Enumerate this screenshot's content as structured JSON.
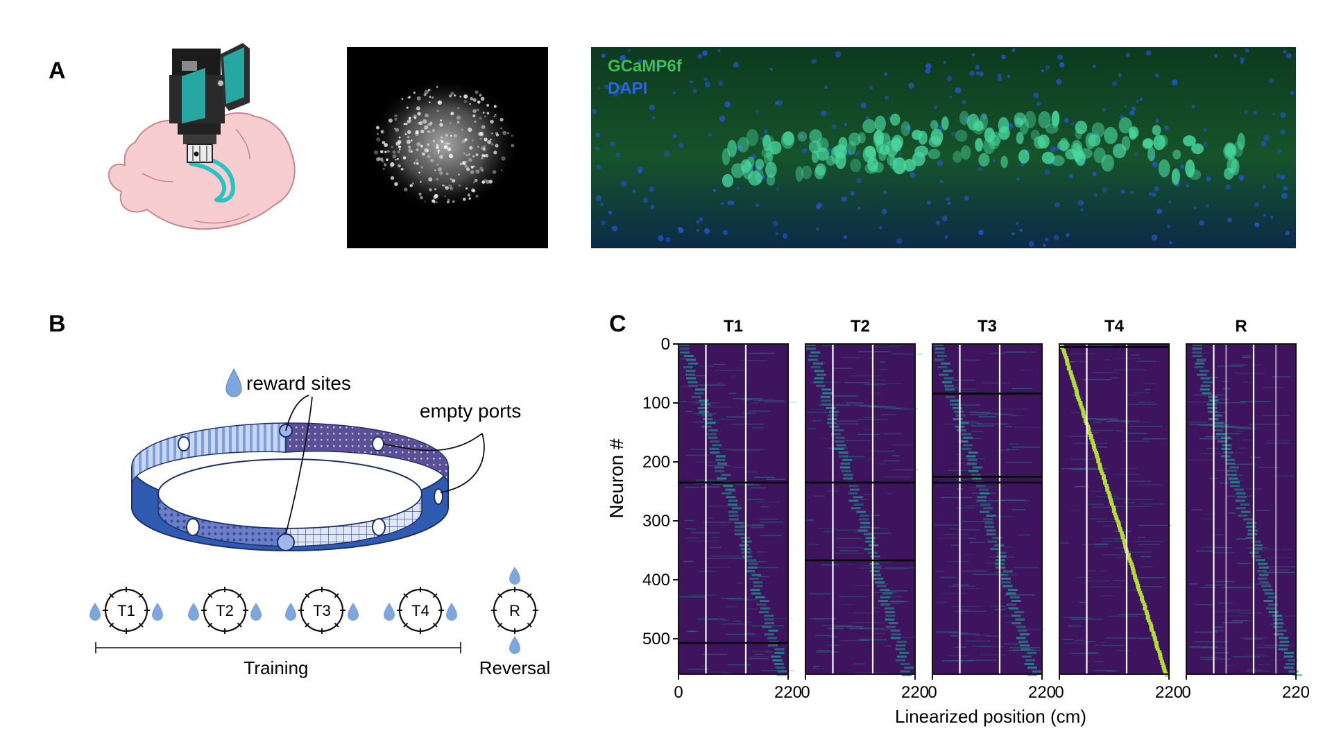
{
  "panels": {
    "a": {
      "letter": "A"
    },
    "b": {
      "letter": "B",
      "reward_label": "reward sites",
      "empty_label": "empty ports",
      "tracks": [
        "T1",
        "T2",
        "T3",
        "T4"
      ],
      "reversal_track": "R",
      "training_label": "Training",
      "reversal_label": "Reversal"
    },
    "c": {
      "letter": "C"
    }
  },
  "histology": {
    "stain_1": "GCaMP6f",
    "stain_2": "DAPI"
  },
  "colors": {
    "gcamp": "#3dbd55",
    "dapi": "#2255cc",
    "heat_bg": "#3e145e",
    "heat_mid": "#21908d",
    "heat_hi": "#b8e636",
    "drop": "#7fa6dc",
    "ring_dark": "#2f5cb0",
    "ring_light": "#c9d7f1",
    "brain": "#f7cdd0",
    "scope_teal": "#27a7a2"
  },
  "chart_data": {
    "type": "heatmap",
    "ylabel": "Neuron #",
    "xlabel": "Linearized position (cm)",
    "xlim": [
      0,
      220
    ],
    "ylim": [
      560,
      0
    ],
    "yticks": [
      0,
      100,
      200,
      300,
      400,
      500
    ],
    "xticks": [
      0,
      220
    ],
    "panels": [
      {
        "title": "T1",
        "reward_positions": [
          55,
          135
        ],
        "breaks": [
          235,
          507
        ],
        "diag_start": 10,
        "diag_end": 210
      },
      {
        "title": "T2",
        "reward_positions": [
          55,
          135
        ],
        "breaks": [
          235,
          367
        ],
        "diag_start": 10,
        "diag_end": 205
      },
      {
        "title": "T3",
        "reward_positions": [
          55,
          135
        ],
        "breaks": [
          84,
          225,
          235
        ],
        "diag_start": 10,
        "diag_end": 205
      },
      {
        "title": "T4",
        "reward_positions": [
          55,
          135
        ],
        "breaks": [
          5
        ],
        "diag_start": 5,
        "diag_end": 215
      },
      {
        "title": "R",
        "reward_positions": [
          55,
          80,
          135,
          180
        ],
        "breaks": [],
        "diag_start": 15,
        "diag_end": 215
      }
    ]
  }
}
